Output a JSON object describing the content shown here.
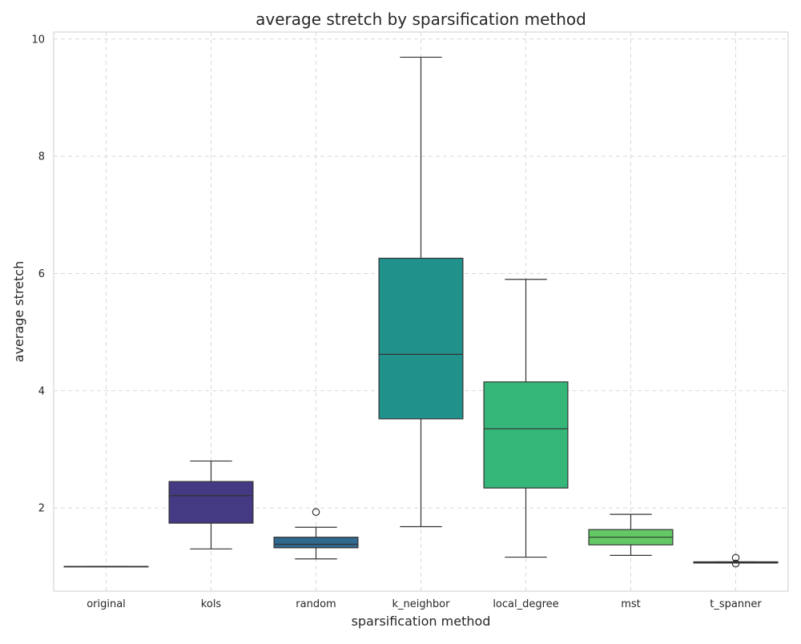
{
  "chart_data": {
    "type": "box",
    "title": "average stretch by sparsification method",
    "xlabel": "sparsification method",
    "ylabel": "average stretch",
    "ylim": [
      0.58,
      10.12
    ],
    "yticks": [
      2,
      4,
      6,
      8,
      10
    ],
    "grid": true,
    "categories": [
      "original",
      "kols",
      "random",
      "k_neighbor",
      "local_degree",
      "mst",
      "t_spanner"
    ],
    "boxes": [
      {
        "category": "original",
        "whisker_low": 1.0,
        "q1": 1.0,
        "median": 1.0,
        "q3": 1.0,
        "whisker_high": 1.0,
        "outliers": [],
        "color": "#440154"
      },
      {
        "category": "kols",
        "whisker_low": 1.3,
        "q1": 1.74,
        "median": 2.21,
        "q3": 2.45,
        "whisker_high": 2.8,
        "outliers": [],
        "color": "#443983"
      },
      {
        "category": "random",
        "whisker_low": 1.13,
        "q1": 1.32,
        "median": 1.38,
        "q3": 1.5,
        "whisker_high": 1.67,
        "outliers": [
          1.93
        ],
        "color": "#31688e"
      },
      {
        "category": "k_neighbor",
        "whisker_low": 1.68,
        "q1": 3.52,
        "median": 4.62,
        "q3": 6.26,
        "whisker_high": 9.69,
        "outliers": [],
        "color": "#21918c"
      },
      {
        "category": "local_degree",
        "whisker_low": 1.16,
        "q1": 2.34,
        "median": 3.35,
        "q3": 4.15,
        "whisker_high": 5.9,
        "outliers": [],
        "color": "#35b779"
      },
      {
        "category": "mst",
        "whisker_low": 1.19,
        "q1": 1.37,
        "median": 1.5,
        "q3": 1.63,
        "whisker_high": 1.89,
        "outliers": [],
        "color": "#62c965"
      },
      {
        "category": "t_spanner",
        "whisker_low": 1.06,
        "q1": 1.06,
        "median": 1.07,
        "q3": 1.08,
        "whisker_high": 1.08,
        "outliers": [
          1.15,
          1.05
        ],
        "color": "#fde725"
      }
    ]
  }
}
